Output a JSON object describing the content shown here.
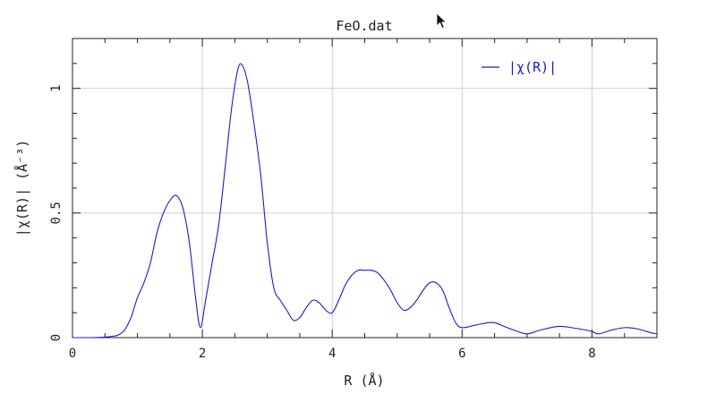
{
  "chart_data": {
    "type": "line",
    "title": "FeO.dat",
    "xlabel": "R (Å)",
    "ylabel": "|χ(R)| (Å⁻³)",
    "xlim": [
      0,
      9
    ],
    "ylim": [
      0,
      1.2
    ],
    "xticks": [
      0,
      2,
      4,
      6,
      8
    ],
    "yticks": [
      0,
      0.5,
      1
    ],
    "ytick_labels": [
      "0",
      "0.5",
      "1"
    ],
    "grid": true,
    "legend_position": "top-right",
    "series": [
      {
        "name": "|χ(R)|",
        "color": "#1a1ad0",
        "x": [
          0.0,
          0.3,
          0.5,
          0.6,
          0.7,
          0.8,
          0.9,
          1.0,
          1.1,
          1.2,
          1.3,
          1.4,
          1.5,
          1.6,
          1.7,
          1.8,
          1.9,
          1.97,
          2.05,
          2.15,
          2.25,
          2.35,
          2.45,
          2.55,
          2.62,
          2.7,
          2.8,
          2.9,
          3.0,
          3.1,
          3.2,
          3.3,
          3.4,
          3.5,
          3.6,
          3.7,
          3.8,
          3.9,
          4.0,
          4.1,
          4.2,
          4.3,
          4.4,
          4.5,
          4.6,
          4.7,
          4.8,
          4.9,
          5.0,
          5.1,
          5.2,
          5.3,
          5.4,
          5.5,
          5.6,
          5.7,
          5.8,
          5.9,
          6.0,
          6.2,
          6.4,
          6.5,
          6.6,
          6.8,
          7.0,
          7.2,
          7.5,
          7.8,
          8.0,
          8.1,
          8.3,
          8.5,
          8.7,
          8.9,
          9.0
        ],
        "y": [
          0.0,
          0.0,
          0.002,
          0.005,
          0.01,
          0.03,
          0.08,
          0.16,
          0.22,
          0.3,
          0.42,
          0.5,
          0.55,
          0.57,
          0.52,
          0.38,
          0.15,
          0.04,
          0.15,
          0.3,
          0.45,
          0.68,
          0.92,
          1.08,
          1.09,
          1.02,
          0.85,
          0.65,
          0.38,
          0.2,
          0.15,
          0.11,
          0.07,
          0.08,
          0.12,
          0.15,
          0.14,
          0.11,
          0.1,
          0.15,
          0.21,
          0.25,
          0.27,
          0.27,
          0.27,
          0.26,
          0.23,
          0.19,
          0.14,
          0.11,
          0.12,
          0.15,
          0.19,
          0.22,
          0.22,
          0.19,
          0.12,
          0.06,
          0.04,
          0.05,
          0.06,
          0.06,
          0.05,
          0.03,
          0.015,
          0.03,
          0.045,
          0.035,
          0.025,
          0.015,
          0.03,
          0.04,
          0.035,
          0.02,
          0.015
        ]
      }
    ]
  }
}
